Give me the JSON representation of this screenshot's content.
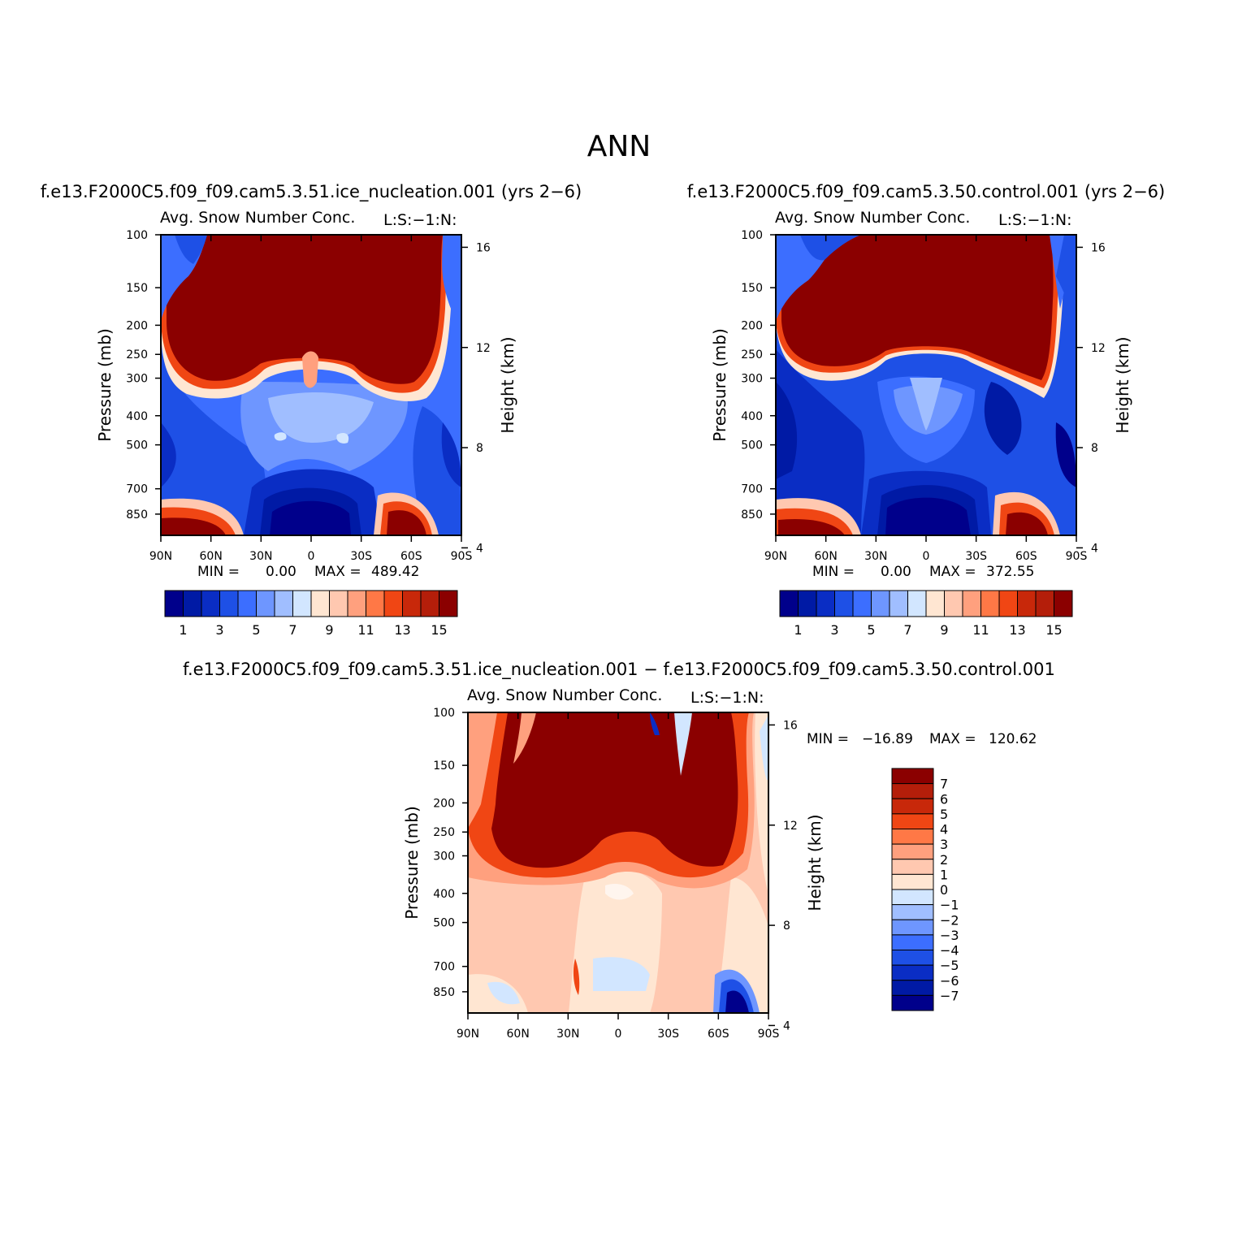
{
  "page": {
    "title": "ANN",
    "colors": {
      "ramp": [
        "#00008b",
        "#001aa5",
        "#0a2dc4",
        "#1e50e6",
        "#3c6eff",
        "#6e96ff",
        "#a0beff",
        "#d2e6ff",
        "#ffe6d2",
        "#ffc8b0",
        "#ffa07e",
        "#ff7846",
        "#f04614",
        "#c8280a",
        "#b41e0a",
        "#8b0000"
      ]
    }
  },
  "chart_data": [
    {
      "type": "heatmap",
      "case_title": "f.e13.F2000C5.f09_f09.cam5.3.51.ice_nucleation.001 (yrs 2−6)",
      "subtitle": "Avg. Snow Number Conc.",
      "units": "L:S:−1:N:",
      "ylabel": "Pressure (mb)",
      "y2label": "Height (km)",
      "x_ticks": [
        "90N",
        "60N",
        "30N",
        "0",
        "30S",
        "60S",
        "90S"
      ],
      "y_ticks": [
        "100",
        "150",
        "200",
        "250",
        "300",
        "400",
        "500",
        "700",
        "850"
      ],
      "y2_ticks": [
        "16",
        "12",
        "8",
        "4"
      ],
      "min_label": "MIN =",
      "min_value": "0.00",
      "max_label": "MAX =",
      "max_value": "489.42",
      "colorbar_labels": [
        "1",
        "3",
        "5",
        "7",
        "9",
        "11",
        "13",
        "15"
      ]
    },
    {
      "type": "heatmap",
      "case_title": "f.e13.F2000C5.f09_f09.cam5.3.50.control.001 (yrs 2−6)",
      "subtitle": "Avg. Snow Number Conc.",
      "units": "L:S:−1:N:",
      "ylabel": "Pressure (mb)",
      "y2label": "Height (km)",
      "x_ticks": [
        "90N",
        "60N",
        "30N",
        "0",
        "30S",
        "60S",
        "90S"
      ],
      "y_ticks": [
        "100",
        "150",
        "200",
        "250",
        "300",
        "400",
        "500",
        "700",
        "850"
      ],
      "y2_ticks": [
        "16",
        "12",
        "8",
        "4"
      ],
      "min_label": "MIN =",
      "min_value": "0.00",
      "max_label": "MAX =",
      "max_value": "372.55",
      "colorbar_labels": [
        "1",
        "3",
        "5",
        "7",
        "9",
        "11",
        "13",
        "15"
      ]
    },
    {
      "type": "heatmap",
      "case_title": "f.e13.F2000C5.f09_f09.cam5.3.51.ice_nucleation.001 − f.e13.F2000C5.f09_f09.cam5.3.50.control.001",
      "subtitle": "Avg. Snow Number Conc.",
      "units": "L:S:−1:N:",
      "ylabel": "Pressure (mb)",
      "y2label": "Height (km)",
      "x_ticks": [
        "90N",
        "60N",
        "30N",
        "0",
        "30S",
        "60S",
        "90S"
      ],
      "y_ticks": [
        "100",
        "150",
        "200",
        "250",
        "300",
        "400",
        "500",
        "700",
        "850"
      ],
      "y2_ticks": [
        "16",
        "12",
        "8",
        "4"
      ],
      "min_label": "MIN =",
      "min_value": "−16.89",
      "max_label": "MAX =",
      "max_value": "120.62",
      "colorbar_labels": [
        "7",
        "6",
        "5",
        "4",
        "3",
        "2",
        "1",
        "0",
        "−1",
        "−2",
        "−3",
        "−4",
        "−5",
        "−6",
        "−7"
      ]
    }
  ]
}
